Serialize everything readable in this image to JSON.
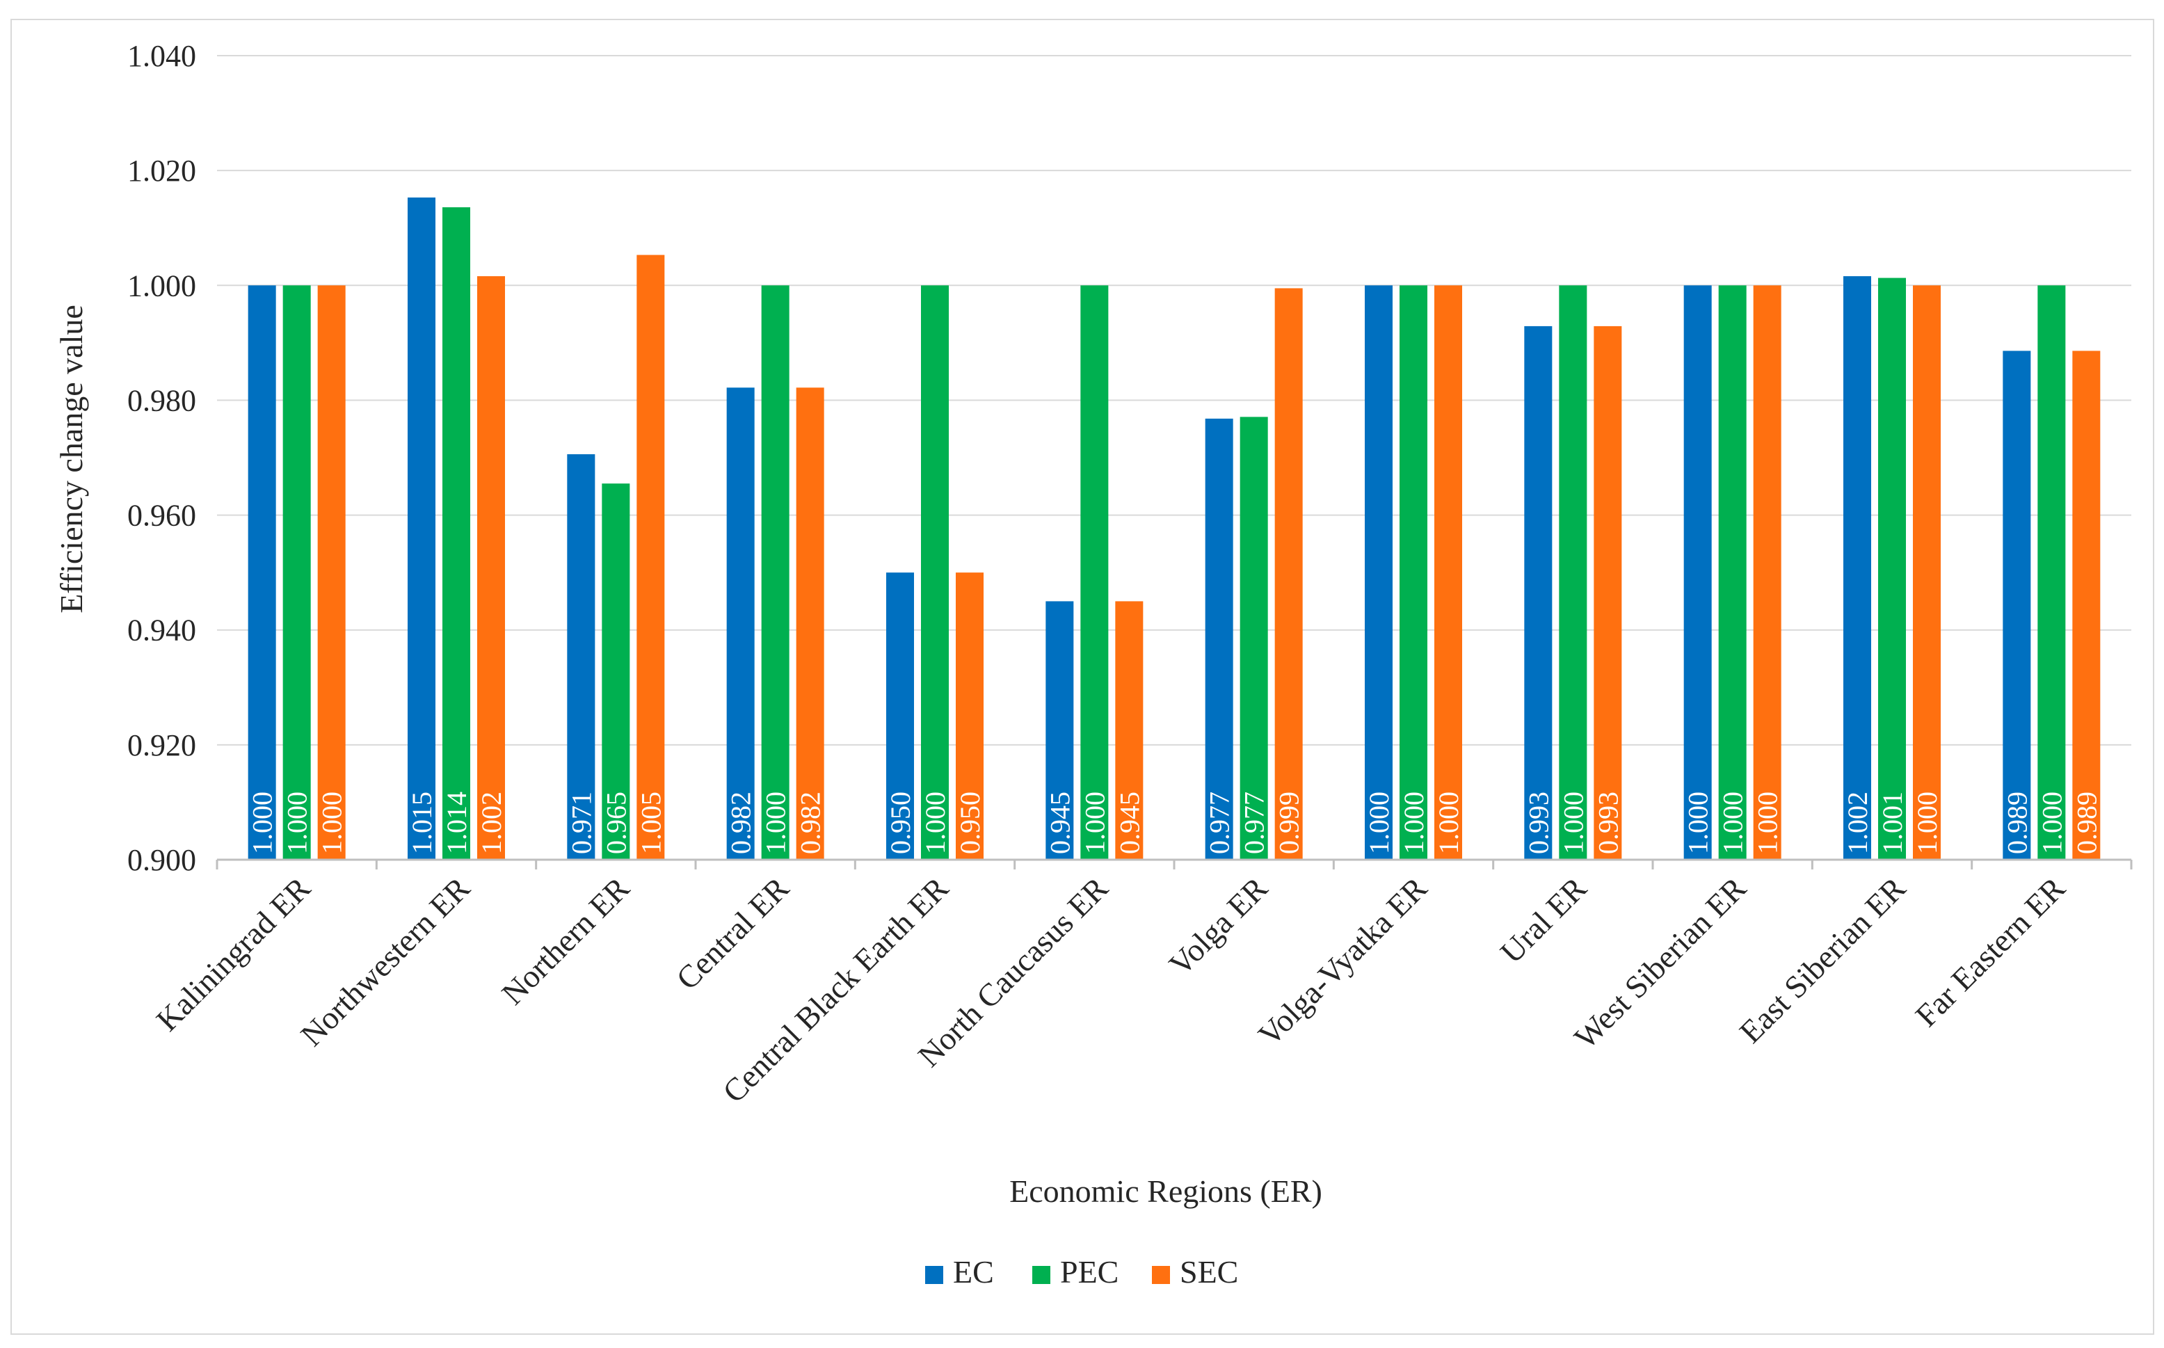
{
  "chart_data": {
    "type": "bar",
    "title": "",
    "xlabel": "Economic Regions (ER)",
    "ylabel": "Efficiency change value",
    "ylim": [
      0.9,
      1.04
    ],
    "yticks": [
      "0.900",
      "0.920",
      "0.940",
      "0.960",
      "0.980",
      "1.000",
      "1.020",
      "1.040"
    ],
    "ytick_values": [
      0.9,
      0.92,
      0.94,
      0.96,
      0.98,
      1.0,
      1.02,
      1.04
    ],
    "grid": true,
    "legend_position": "bottom",
    "categories": [
      "Kaliningrad ER",
      "Northwestern ER",
      "Northern ER",
      "Central ER",
      "Central Black Earth ER",
      "North Caucasus ER",
      "Volga ER",
      "Volga-Vyatka ER",
      "Ural ER",
      "West Siberian ER",
      "East Siberian ER",
      "Far Eastern ER"
    ],
    "series": [
      {
        "name": "EC",
        "color": "#0070C0",
        "values": [
          1.0,
          1.0153,
          0.9706,
          0.9822,
          0.95,
          0.945,
          0.9768,
          1.0,
          0.9929,
          1.0,
          1.0016,
          0.9886
        ],
        "labels": [
          "1.000",
          "1.015",
          "0.971",
          "0.982",
          "0.950",
          "0.945",
          "0.977",
          "1.000",
          "0.993",
          "1.000",
          "1.002",
          "0.989"
        ]
      },
      {
        "name": "PEC",
        "color": "#00B050",
        "values": [
          1.0,
          1.0136,
          0.9655,
          1.0,
          1.0,
          1.0,
          0.9771,
          1.0,
          1.0,
          1.0,
          1.0013,
          1.0
        ],
        "labels": [
          "1.000",
          "1.014",
          "0.965",
          "1.000",
          "1.000",
          "1.000",
          "0.977",
          "1.000",
          "1.000",
          "1.000",
          "1.001",
          "1.000"
        ]
      },
      {
        "name": "SEC",
        "color": "#FF7010",
        "values": [
          1.0,
          1.0016,
          1.0053,
          0.9822,
          0.95,
          0.945,
          0.9995,
          1.0,
          0.9929,
          1.0,
          1.0,
          0.9886
        ],
        "labels": [
          "1.000",
          "1.002",
          "1.005",
          "0.982",
          "0.950",
          "0.945",
          "0.999",
          "1.000",
          "0.993",
          "1.000",
          "1.000",
          "0.989"
        ]
      }
    ]
  }
}
